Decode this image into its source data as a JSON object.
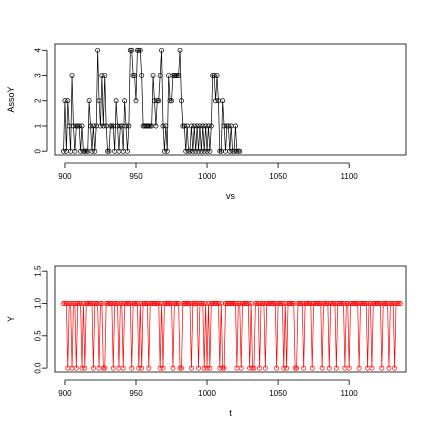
{
  "chart_data": [
    {
      "type": "line",
      "title": "",
      "xlabel": "vs",
      "ylabel": "AssoY",
      "xlim": [
        893,
        1140
      ],
      "ylim": [
        -0.15,
        4.25
      ],
      "xticks": [
        900,
        950,
        1000,
        1050,
        1100
      ],
      "yticks": [
        0,
        1,
        2,
        3,
        4
      ],
      "grid": false,
      "markers": "open-circle",
      "line_color": "#000000",
      "marker_color": "#000000",
      "x_start": 899,
      "x_step": 1,
      "values": [
        0,
        2,
        0,
        2,
        1,
        0,
        3,
        1,
        0,
        1,
        1,
        1,
        0,
        1,
        0,
        0,
        0,
        0,
        2,
        1,
        0,
        1,
        0,
        1,
        4,
        2,
        1,
        3,
        1,
        3,
        1,
        0,
        0,
        1,
        1,
        1,
        0,
        2,
        1,
        0,
        1,
        1,
        0,
        2,
        1,
        0,
        1,
        4,
        4,
        3,
        3,
        2,
        4,
        4,
        4,
        3,
        1,
        1,
        1,
        1,
        1,
        1,
        1,
        3,
        2,
        1,
        2,
        2,
        3,
        4,
        1,
        0,
        1,
        0,
        3,
        2,
        2,
        3,
        3,
        3,
        3,
        3,
        4,
        2,
        1,
        1,
        0,
        1,
        0,
        0,
        1,
        0,
        1,
        0,
        1,
        0,
        1,
        0,
        1,
        0,
        1,
        0,
        1,
        0,
        1,
        3,
        3,
        2,
        3,
        2,
        0,
        0,
        2,
        1,
        0,
        1,
        1,
        0,
        1,
        0,
        0,
        1,
        0,
        0,
        0
      ]
    },
    {
      "type": "line",
      "title": "",
      "xlabel": "t",
      "ylabel": "Y",
      "xlim": [
        893,
        1140
      ],
      "ylim": [
        -0.06,
        1.58
      ],
      "xticks": [
        900,
        950,
        1000,
        1050,
        1100
      ],
      "yticks": [
        0.0,
        0.5,
        1.0,
        1.5
      ],
      "ytick_labels": [
        "0.0",
        "0.5",
        "1.0",
        "1.5"
      ],
      "grid": false,
      "markers": "open-circle",
      "line_color": "#ff0000",
      "marker_color": "#ff0000",
      "x_start": 899,
      "x_step": 1,
      "values": [
        1,
        1,
        1,
        0,
        1,
        1,
        0,
        1,
        1,
        0,
        1,
        1,
        1,
        0,
        1,
        0,
        1,
        1,
        1,
        1,
        1,
        0,
        1,
        1,
        1,
        0,
        1,
        1,
        0,
        0,
        1,
        1,
        1,
        1,
        1,
        0,
        1,
        1,
        1,
        0,
        1,
        1,
        0,
        1,
        1,
        1,
        1,
        1,
        0,
        1,
        1,
        1,
        1,
        0,
        1,
        0,
        1,
        1,
        1,
        1,
        0,
        1,
        1,
        1,
        1,
        1,
        1,
        1,
        0,
        1,
        0,
        1,
        1,
        1,
        1,
        1,
        1,
        0,
        1,
        1,
        1,
        1,
        0,
        0,
        1,
        1,
        1,
        1,
        1,
        1,
        0,
        1,
        1,
        1,
        1,
        0,
        1,
        1,
        1,
        0,
        1,
        0,
        1,
        0,
        1,
        1,
        1,
        1,
        1,
        1,
        0,
        1,
        0,
        0,
        1,
        1,
        1,
        1,
        1,
        1,
        1,
        1,
        0,
        1,
        1,
        0,
        1,
        1,
        1,
        1,
        1,
        0,
        1,
        0,
        0,
        1,
        1,
        1,
        0,
        1,
        1,
        1,
        0,
        1,
        1,
        1,
        1,
        1,
        1,
        1,
        0,
        1,
        1,
        1,
        1,
        0,
        1,
        0,
        1,
        1,
        1,
        1,
        1,
        0,
        0,
        1,
        1,
        1,
        1,
        0,
        1,
        1,
        1,
        1,
        1,
        0,
        1,
        1,
        1,
        1,
        1,
        1,
        0,
        1,
        1,
        1,
        1,
        0,
        1,
        1,
        1,
        1,
        0,
        1,
        1,
        1,
        1,
        1,
        0,
        1,
        1,
        0,
        1,
        1,
        1,
        1,
        1,
        1,
        0,
        1,
        1,
        1,
        1,
        1,
        0,
        1,
        1,
        0,
        1,
        1,
        1,
        1,
        1,
        1,
        0,
        1,
        1,
        1,
        1,
        0,
        1,
        1,
        1,
        0,
        1,
        1,
        1,
        1
      ]
    }
  ]
}
